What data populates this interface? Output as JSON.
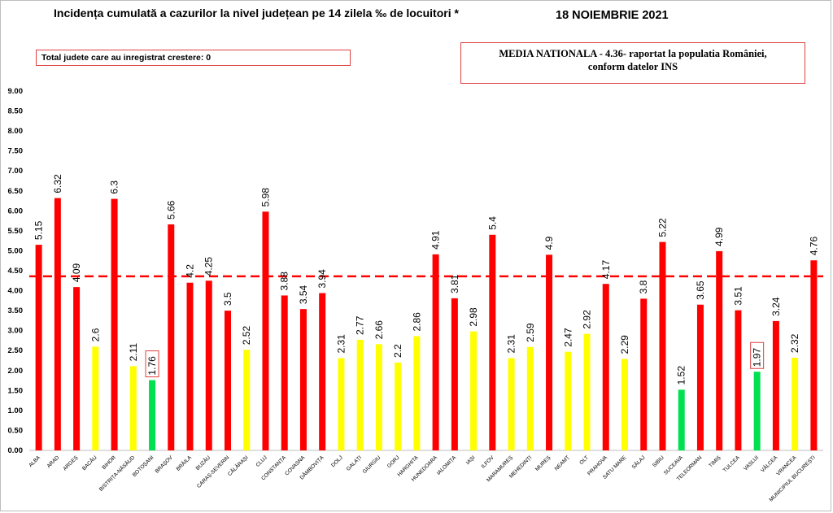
{
  "header": {
    "title": "Incidența cumulată a cazurilor la nivel județean pe 14 zilela ‰ de locuitori *",
    "date": "18 NOIEMBRIE 2021"
  },
  "info_left": "Total judete care au inregistrat crestere: 0",
  "info_right": {
    "line1": "MEDIA NATIONALA  - 4.36-  raportat la populatia României,",
    "line2": "conform datelor INS"
  },
  "colors": {
    "red": "#ff0000",
    "yellow": "#ffff00",
    "green": "#00e050",
    "reference_line": "#ff0000"
  },
  "chart_data": {
    "type": "bar",
    "title": "Incidența cumulată a cazurilor la nivel județean pe 14 zilela ‰ de locuitori *",
    "ylim": [
      0,
      9
    ],
    "yticks": [
      "0.00",
      "0.50",
      "1.00",
      "1.50",
      "2.00",
      "2.50",
      "3.00",
      "3.50",
      "4.00",
      "4.50",
      "5.00",
      "5.50",
      "6.00",
      "6.50",
      "7.00",
      "7.50",
      "8.00",
      "8.50",
      "9.00"
    ],
    "reference_line": 4.36,
    "grid": false,
    "categories": [
      "ALBA",
      "ARAD",
      "ARGEȘ",
      "BACĂU",
      "BIHOR",
      "BISTRIȚA-NĂSĂUD",
      "BOTOȘANI",
      "BRAȘOV",
      "BRĂILA",
      "BUZĂU",
      "CARAȘ-SEVERIN",
      "CĂLĂRAȘI",
      "CLUJ",
      "CONSTANȚA",
      "COVASNA",
      "DÂMBOVIȚA",
      "DOLJ",
      "GALAȚI",
      "GIURGIU",
      "GORJ",
      "HARGHITA",
      "HUNEDOARA",
      "IALOMIȚA",
      "IAȘI",
      "ILFOV",
      "MARAMUREȘ",
      "MEHEDINȚI",
      "MUREȘ",
      "NEAMȚ",
      "OLT",
      "PRAHOVA",
      "SATU MARE",
      "SĂLAJ",
      "SIBIU",
      "SUCEAVA",
      "TELEORMAN",
      "TIMIȘ",
      "TULCEA",
      "VASLUI",
      "VÂLCEA",
      "VRANCEA",
      "MUNICIPIUL BUCUREȘTI"
    ],
    "values": [
      5.15,
      6.32,
      4.09,
      2.6,
      6.3,
      2.11,
      1.76,
      5.66,
      4.2,
      4.25,
      3.5,
      2.52,
      5.98,
      3.88,
      3.54,
      3.94,
      2.31,
      2.77,
      2.66,
      2.2,
      2.86,
      4.91,
      3.81,
      2.98,
      5.4,
      2.31,
      2.59,
      4.9,
      2.47,
      2.92,
      4.17,
      2.29,
      3.8,
      5.22,
      1.52,
      3.65,
      4.99,
      3.51,
      1.97,
      3.24,
      2.32,
      4.76
    ],
    "value_labels": [
      "5.15",
      "6.32",
      "4.09",
      "2.6",
      "6.3",
      "2.11",
      "1.76",
      "5.66",
      "4.2",
      "4.25",
      "3.5",
      "2.52",
      "5.98",
      "3.88",
      "3.54",
      "3.94",
      "2.31",
      "2.77",
      "2.66",
      "2.2",
      "2.86",
      "4.91",
      "3.81",
      "2.98",
      "5.4",
      "2.31",
      "2.59",
      "4.9",
      "2.47",
      "2.92",
      "4.17",
      "2.29",
      "3.8",
      "5.22",
      "1.52",
      "3.65",
      "4.99",
      "3.51",
      "1.97",
      "3.24",
      "2.32",
      "4.76"
    ],
    "bar_colors": [
      "red",
      "red",
      "red",
      "yellow",
      "red",
      "yellow",
      "green",
      "red",
      "red",
      "red",
      "red",
      "yellow",
      "red",
      "red",
      "red",
      "red",
      "yellow",
      "yellow",
      "yellow",
      "yellow",
      "yellow",
      "red",
      "red",
      "yellow",
      "red",
      "yellow",
      "yellow",
      "red",
      "yellow",
      "yellow",
      "red",
      "yellow",
      "red",
      "red",
      "green",
      "red",
      "red",
      "red",
      "green",
      "red",
      "yellow",
      "red"
    ],
    "boxed_labels": [
      "BOTOȘANI",
      "VASLUI"
    ]
  }
}
